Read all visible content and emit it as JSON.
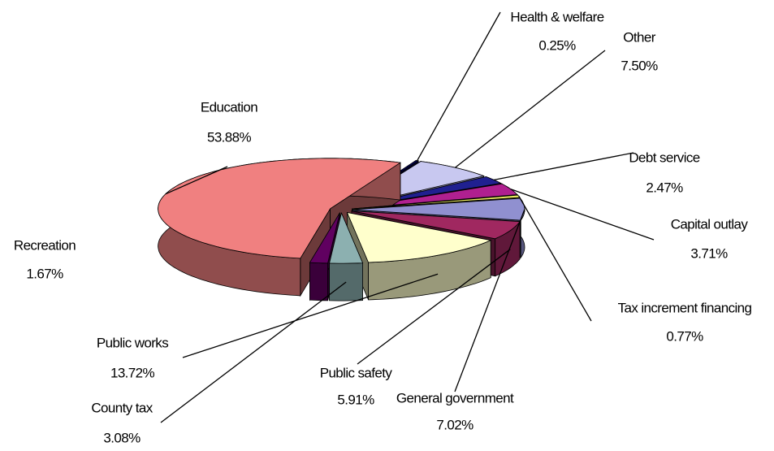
{
  "chart_data": {
    "type": "pie3d",
    "categories": [
      "Education",
      "Health & welfare",
      "Other",
      "Debt service",
      "Capital outlay",
      "Tax increment financing",
      "General government",
      "Public safety",
      "Public works",
      "County tax",
      "Recreation"
    ],
    "values": [
      53.88,
      0.25,
      7.5,
      2.47,
      3.71,
      0.77,
      7.02,
      5.91,
      13.72,
      3.08,
      1.67
    ],
    "value_labels": [
      "53.88%",
      "0.25%",
      "7.50%",
      "2.47%",
      "3.71%",
      "0.77%",
      "7.02%",
      "5.91%",
      "13.72%",
      "3.08%",
      "1.67%"
    ],
    "colors": [
      "#f08080",
      "#000060",
      "#c8c8f0",
      "#202090",
      "#b02090",
      "#e8e860",
      "#9090d0",
      "#a02860",
      "#ffffcc",
      "#8cb0b0",
      "#600060"
    ]
  }
}
